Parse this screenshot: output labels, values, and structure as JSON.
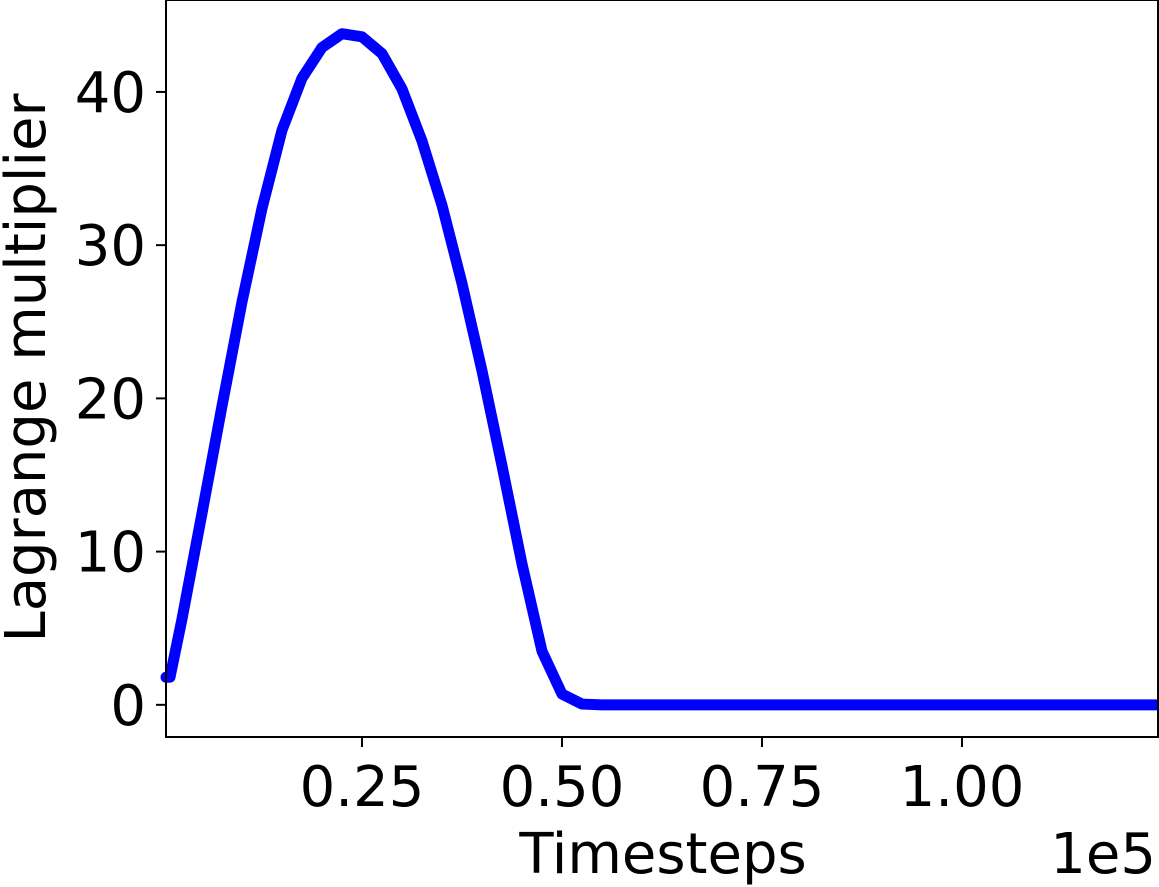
{
  "chart_data": {
    "type": "line",
    "title": "",
    "xlabel": "Timesteps",
    "ylabel": "Lagrange multiplier",
    "x_offset_label": "1e5",
    "xlim": [
      0.005,
      1.245
    ],
    "ylim": [
      -2.1,
      46.0
    ],
    "x_ticks": [
      0.25,
      0.5,
      0.75,
      1.0
    ],
    "x_tick_labels": [
      "0.25",
      "0.50",
      "0.75",
      "1.00"
    ],
    "y_ticks": [
      0,
      10,
      20,
      30,
      40
    ],
    "y_tick_labels": [
      "0",
      "10",
      "20",
      "30",
      "40"
    ],
    "grid": false,
    "series": [
      {
        "name": "Lagrange multiplier",
        "color": "#0000ff",
        "x": [
          0.005,
          0.01,
          0.025,
          0.05,
          0.075,
          0.1,
          0.125,
          0.15,
          0.175,
          0.2,
          0.225,
          0.25,
          0.275,
          0.3,
          0.325,
          0.35,
          0.375,
          0.4,
          0.425,
          0.45,
          0.475,
          0.5,
          0.525,
          0.55,
          0.575,
          0.6,
          0.615,
          0.63,
          0.64,
          0.66,
          0.7,
          0.8,
          0.9,
          1.0,
          1.1,
          1.245
        ],
        "y": [
          1.8,
          1.8,
          5.6,
          12.5,
          19.5,
          26.3,
          32.4,
          37.5,
          40.9,
          42.9,
          43.8,
          43.6,
          42.5,
          40.2,
          36.8,
          32.6,
          27.5,
          21.8,
          15.6,
          9.2,
          3.5,
          0.7,
          0.05,
          0,
          0,
          0,
          0,
          0,
          0,
          0,
          0,
          0,
          0,
          0,
          0,
          0
        ]
      }
    ]
  }
}
